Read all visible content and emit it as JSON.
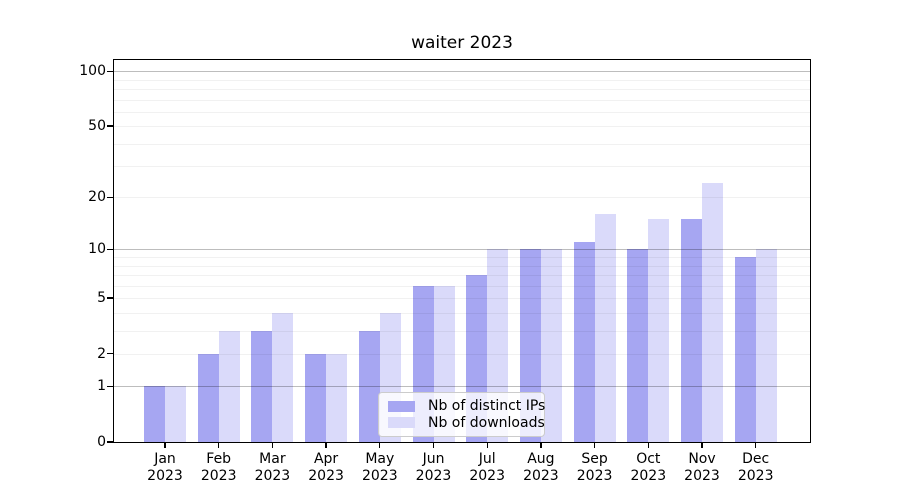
{
  "chart_data": {
    "type": "bar",
    "title": "waiter 2023",
    "categories": [
      "Jan",
      "Feb",
      "Mar",
      "Apr",
      "May",
      "Jun",
      "Jul",
      "Aug",
      "Sep",
      "Oct",
      "Nov",
      "Dec"
    ],
    "year_label": "2023",
    "series": [
      {
        "name": "Nb of distinct IPs",
        "color": "#a6a6f2",
        "values": [
          1,
          2,
          3,
          2,
          3,
          6,
          7,
          10,
          11,
          10,
          15,
          9
        ]
      },
      {
        "name": "Nb of downloads",
        "color": "#dadafa",
        "values": [
          1,
          3,
          4,
          2,
          4,
          6,
          10,
          10,
          16,
          15,
          24,
          10
        ]
      }
    ],
    "xlabel": "",
    "ylabel": "",
    "yscale": "log1p",
    "ylim": [
      0,
      115
    ],
    "yticks": [
      0,
      1,
      2,
      5,
      10,
      20,
      50,
      100
    ],
    "major_gridlines": [
      1,
      10,
      100
    ],
    "minor_gridlines": [
      2,
      3,
      4,
      5,
      6,
      7,
      8,
      9,
      20,
      30,
      40,
      50,
      60,
      70,
      80,
      90
    ],
    "grid": true,
    "legend_position": "lower center"
  }
}
